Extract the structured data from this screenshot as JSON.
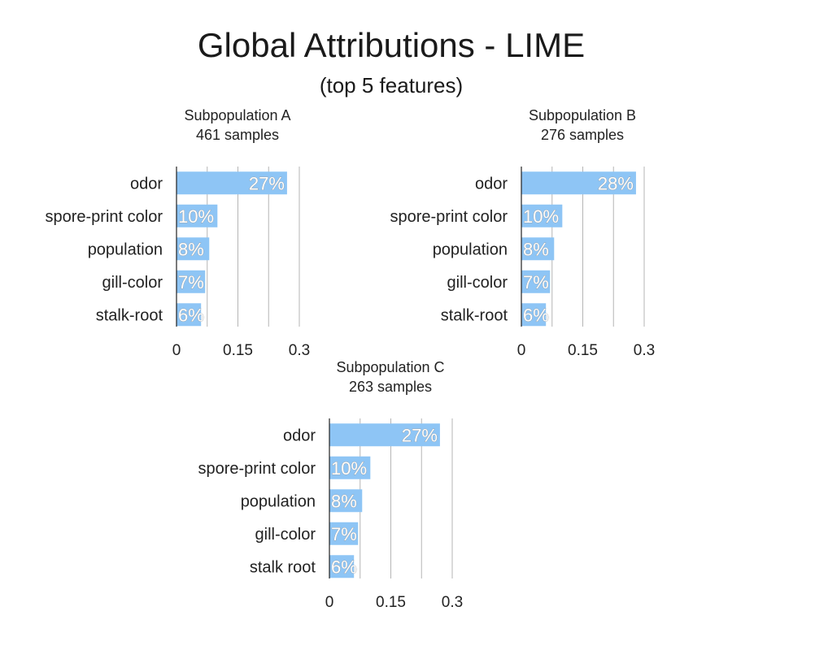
{
  "title": "Global Attributions - LIME",
  "subtitle": "(top 5 features)",
  "chart_data": [
    {
      "type": "bar",
      "orientation": "horizontal",
      "title": "Subpopulation A",
      "subtitle": "461 samples",
      "categories": [
        "odor",
        "spore-print color",
        "population",
        "gill-color",
        "stalk-root"
      ],
      "values": [
        0.27,
        0.1,
        0.08,
        0.07,
        0.06
      ],
      "value_labels": [
        "27%",
        "10%",
        "8%",
        "7%",
        "6%"
      ],
      "xlim": [
        0,
        0.3
      ],
      "xticks": [
        "0",
        "0.15",
        "0.3"
      ],
      "grid": true,
      "color": "#8ec5f5"
    },
    {
      "type": "bar",
      "orientation": "horizontal",
      "title": "Subpopulation B",
      "subtitle": "276 samples",
      "categories": [
        "odor",
        "spore-print color",
        "population",
        "gill-color",
        "stalk-root"
      ],
      "values": [
        0.28,
        0.1,
        0.08,
        0.07,
        0.06
      ],
      "value_labels": [
        "28%",
        "10%",
        "8%",
        "7%",
        "6%"
      ],
      "xlim": [
        0,
        0.3
      ],
      "xticks": [
        "0",
        "0.15",
        "0.3"
      ],
      "grid": true,
      "color": "#8ec5f5"
    },
    {
      "type": "bar",
      "orientation": "horizontal",
      "title": "Subpopulation C",
      "subtitle": "263 samples",
      "categories": [
        "odor",
        "spore-print color",
        "population",
        "gill-color",
        "stalk root"
      ],
      "values": [
        0.27,
        0.1,
        0.08,
        0.07,
        0.06
      ],
      "value_labels": [
        "27%",
        "10%",
        "8%",
        "7%",
        "6%"
      ],
      "xlim": [
        0,
        0.3
      ],
      "xticks": [
        "0",
        "0.15",
        "0.3"
      ],
      "grid": true,
      "color": "#8ec5f5"
    }
  ]
}
